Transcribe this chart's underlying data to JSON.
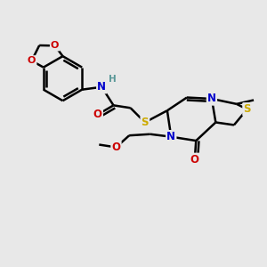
{
  "bg_color": "#e8e8e8",
  "atom_colors": {
    "C": "#000000",
    "N": "#0000cc",
    "O": "#cc0000",
    "S": "#ccaa00",
    "H": "#5a9898"
  },
  "bond_color": "#000000",
  "bond_width": 1.8,
  "figsize": [
    3.0,
    3.0
  ],
  "dpi": 100
}
